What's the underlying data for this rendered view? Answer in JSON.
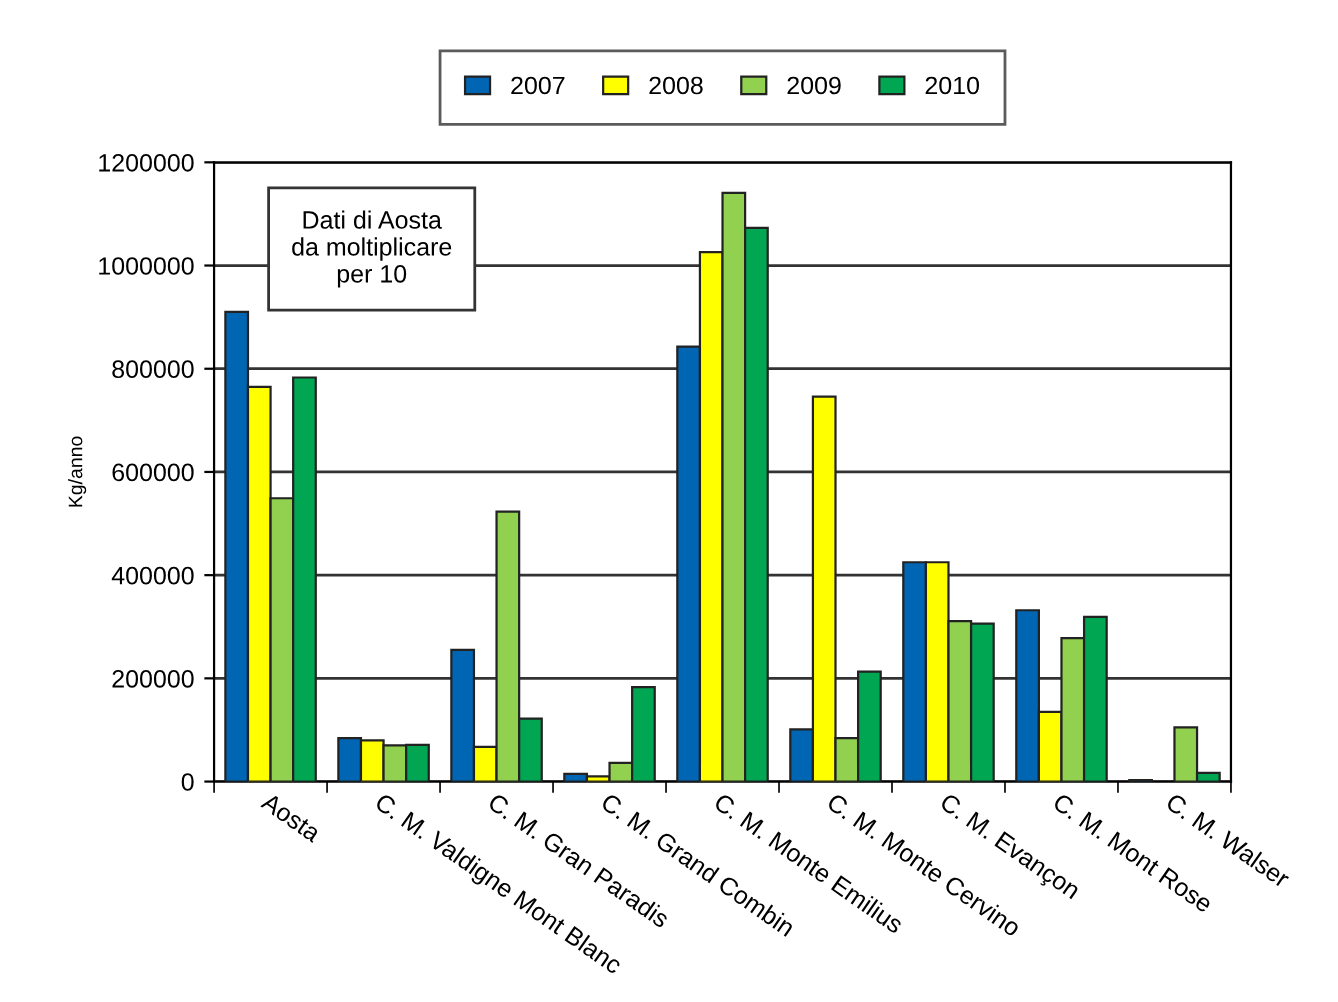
{
  "chart_data": {
    "type": "bar",
    "ylabel": "Kg/anno",
    "categories": [
      "Aosta",
      "C. M. Valdigne Mont Blanc",
      "C. M. Gran Paradis",
      "C. M. Grand Combin",
      "C. M. Monte Emilius",
      "C. M. Monte Cervino",
      "C. M. Evançon",
      "C. M. Mont Rose",
      "C. M. Walser"
    ],
    "series": [
      {
        "name": "2007",
        "color": "#0066b3",
        "values": [
          910000,
          84000,
          255000,
          15000,
          843000,
          101000,
          425000,
          332000,
          3000
        ]
      },
      {
        "name": "2008",
        "color": "#ffff00",
        "values": [
          765000,
          80000,
          67000,
          10000,
          1026000,
          746000,
          425000,
          135000,
          null
        ]
      },
      {
        "name": "2009",
        "color": "#92d050",
        "values": [
          549000,
          70000,
          523000,
          36000,
          1141000,
          84000,
          311000,
          278000,
          105000
        ]
      },
      {
        "name": "2010",
        "color": "#00a651",
        "values": [
          783000,
          71000,
          122000,
          183000,
          1073000,
          213000,
          306000,
          319000,
          17000
        ]
      }
    ],
    "ylim": [
      0,
      1200000
    ],
    "yticks": [
      0,
      200000,
      400000,
      600000,
      800000,
      1000000,
      1200000
    ],
    "grid": "y",
    "legend": "top",
    "annotations": [
      "Dati di Aosta\nda moltiplicare\nper 10"
    ]
  }
}
